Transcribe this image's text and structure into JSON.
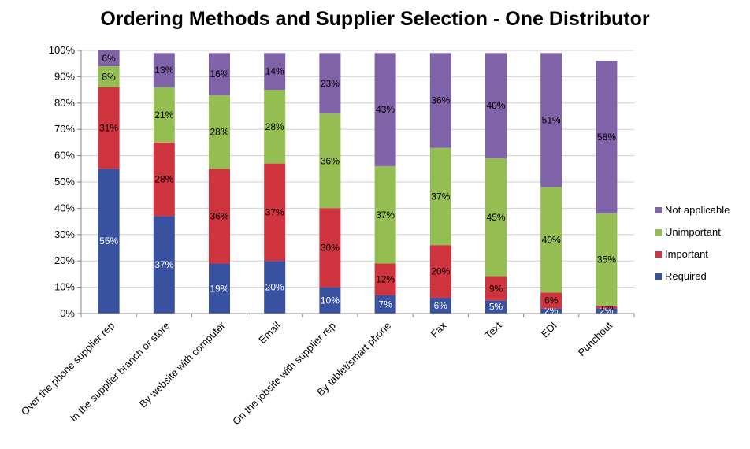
{
  "chart_data": {
    "type": "bar",
    "stacked": true,
    "title": "Ordering Methods and Supplier Selection - One Distributor",
    "categories": [
      "Over the phone supplier rep",
      "In the supplier branch or store",
      "By website with computer",
      "Email",
      "On the jobsite with supplier rep",
      "By tablet/smart phone",
      "Fax",
      "Text",
      "EDI",
      "Punchout"
    ],
    "series": [
      {
        "name": "Required",
        "color": "#3951a1",
        "values": [
          55,
          37,
          19,
          20,
          10,
          7,
          6,
          5,
          2,
          2
        ],
        "label_color": "#ffffff"
      },
      {
        "name": "Important",
        "color": "#d0343e",
        "values": [
          31,
          28,
          36,
          37,
          30,
          12,
          20,
          9,
          6,
          1
        ],
        "label_color": "#000000"
      },
      {
        "name": "Unimportant",
        "color": "#94bd52",
        "values": [
          8,
          21,
          28,
          28,
          36,
          37,
          37,
          45,
          40,
          35
        ],
        "label_color": "#000000"
      },
      {
        "name": "Not applicable",
        "color": "#7f62a7",
        "values": [
          6,
          13,
          16,
          14,
          23,
          43,
          36,
          40,
          51,
          58
        ],
        "label_color": "#000000"
      }
    ],
    "data_labels": [
      [
        "55%",
        "37%",
        "19%",
        "20%",
        "10%",
        "7%",
        "6%",
        "5%",
        "2%",
        "2%"
      ],
      [
        "31%",
        "28%",
        "36%",
        "37%",
        "30%",
        "12%",
        "20%",
        "9%",
        "6%",
        "1%"
      ],
      [
        "8%",
        "21%",
        "28%",
        "28%",
        "36%",
        "37%",
        "37%",
        "45%",
        "40%",
        "35%"
      ],
      [
        "6%",
        "13%",
        "16%",
        "14%",
        "23%",
        "43%",
        "36%",
        "40%",
        "51%",
        "58%"
      ]
    ],
    "y_ticks": [
      "0%",
      "10%",
      "20%",
      "30%",
      "40%",
      "50%",
      "60%",
      "70%",
      "80%",
      "90%",
      "100%"
    ],
    "ylim": [
      0,
      100
    ],
    "grid": true,
    "legend_position": "right",
    "legend_order": [
      "Not applicable",
      "Unimportant",
      "Important",
      "Required"
    ]
  }
}
